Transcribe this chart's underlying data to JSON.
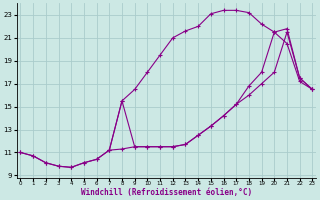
{
  "xlabel": "Windchill (Refroidissement éolien,°C)",
  "bg_color": "#cce8e4",
  "grid_color": "#aacccc",
  "line_color": "#880088",
  "xlim": [
    -0.3,
    23.3
  ],
  "ylim": [
    8.8,
    24.0
  ],
  "xticks": [
    0,
    1,
    2,
    3,
    4,
    5,
    6,
    7,
    8,
    9,
    10,
    11,
    12,
    13,
    14,
    15,
    16,
    17,
    18,
    19,
    20,
    21,
    22,
    23
  ],
  "yticks": [
    9,
    11,
    13,
    15,
    17,
    19,
    21,
    23
  ],
  "line_upper_x": [
    0,
    1,
    2,
    3,
    4,
    5,
    6,
    7,
    8,
    9,
    10,
    11,
    12,
    13,
    14,
    15,
    16,
    17,
    18,
    19,
    20,
    21,
    22,
    23
  ],
  "line_upper_y": [
    11.0,
    10.7,
    10.1,
    9.8,
    9.7,
    10.1,
    10.4,
    11.2,
    15.5,
    16.5,
    18.0,
    19.5,
    21.0,
    21.6,
    22.0,
    23.1,
    23.4,
    23.4,
    23.2,
    22.2,
    21.5,
    20.5,
    17.2,
    16.5
  ],
  "line_lower_x": [
    0,
    1,
    2,
    3,
    4,
    5,
    6,
    7,
    8,
    9,
    10,
    11,
    12,
    13,
    14,
    15,
    16,
    17,
    18,
    19,
    20,
    21,
    22,
    23
  ],
  "line_lower_y": [
    11.0,
    10.7,
    10.1,
    9.8,
    9.7,
    10.1,
    10.4,
    11.2,
    11.3,
    11.5,
    11.5,
    11.5,
    11.5,
    11.7,
    12.5,
    13.3,
    14.2,
    15.2,
    16.0,
    17.0,
    18.0,
    21.5,
    17.5,
    16.5
  ],
  "line_mid_x": [
    7,
    8,
    9,
    10,
    11,
    12,
    13,
    14,
    15,
    16,
    17,
    18,
    19,
    20,
    21,
    22,
    23
  ],
  "line_mid_y": [
    11.2,
    15.5,
    11.5,
    11.5,
    11.5,
    11.5,
    11.7,
    12.5,
    13.3,
    14.2,
    15.2,
    16.8,
    18.0,
    21.5,
    21.8,
    17.5,
    16.5
  ]
}
